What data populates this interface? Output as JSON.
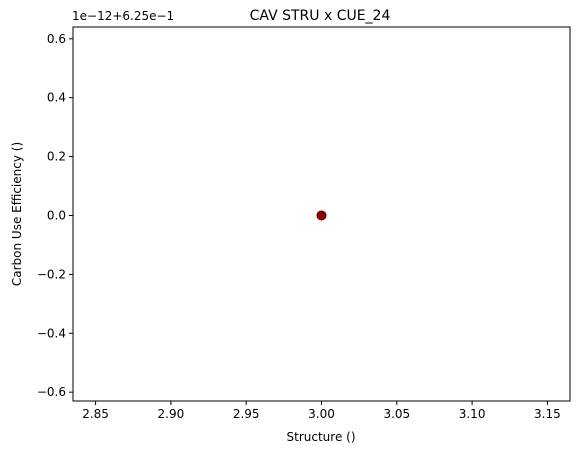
{
  "chart_data": {
    "type": "scatter",
    "title": "CAV STRU x CUE_24",
    "xlabel": "Structure ()",
    "ylabel": "Carbon Use Efficiency ()",
    "y_offset_text": "1e−12+6.25e−1",
    "xlim": [
      2.835,
      3.165
    ],
    "ylim": [
      -0.63,
      0.64
    ],
    "x_ticks": [
      2.85,
      2.9,
      2.95,
      3.0,
      3.05,
      3.1,
      3.15
    ],
    "x_tick_labels": [
      "2.85",
      "2.90",
      "2.95",
      "3.00",
      "3.05",
      "3.10",
      "3.15"
    ],
    "y_ticks": [
      -0.6,
      -0.4,
      -0.2,
      0.0,
      0.2,
      0.4,
      0.6
    ],
    "y_tick_labels": [
      "−0.6",
      "−0.4",
      "−0.2",
      "0.0",
      "0.2",
      "0.4",
      "0.6"
    ],
    "grid": false,
    "points": [
      {
        "x": 3.0,
        "y": 0.0
      }
    ],
    "marker_color": "#8b0000",
    "marker_edge_color": "#5a0000"
  }
}
